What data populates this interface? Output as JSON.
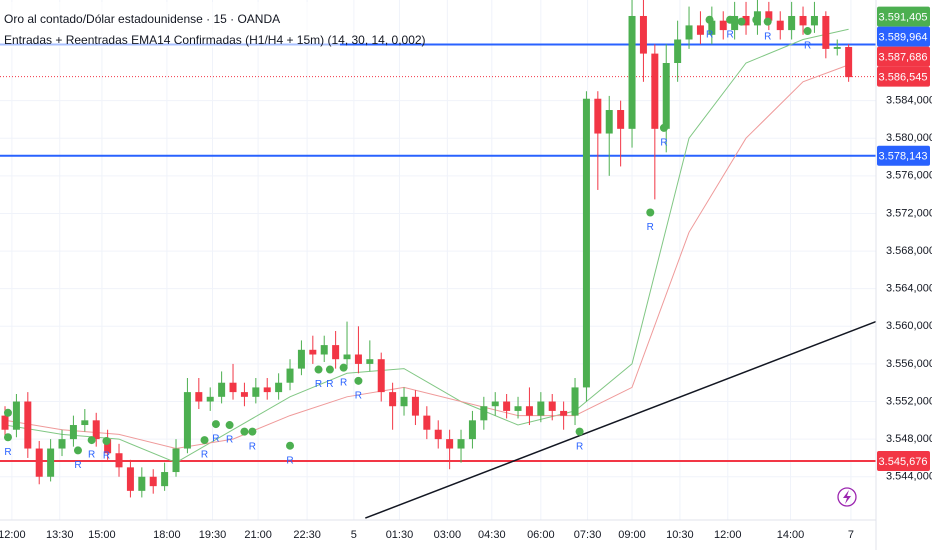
{
  "chart_data": {
    "type": "candlestick",
    "title": "Oro al contado/Dólar estadounidense · 15 · OANDA",
    "subtitle": "Entradas + Reentradas EMA14 Confirmadas (H1/H4 + 15m) (14, 30, 14, 0,002)",
    "up_color": "#4caf50",
    "down_color": "#f23645",
    "xlim": [
      -0.44,
      76.4
    ],
    "ylim": [
      3.5394,
      3.5947
    ],
    "yticks": [
      {
        "value": 3.584,
        "label": "3.584,000"
      },
      {
        "value": 3.58,
        "label": "3.580,000"
      },
      {
        "value": 3.576,
        "label": "3.576,000"
      },
      {
        "value": 3.572,
        "label": "3.572,000"
      },
      {
        "value": 3.568,
        "label": "3.568,000"
      },
      {
        "value": 3.564,
        "label": "3.564,000"
      },
      {
        "value": 3.56,
        "label": "3.560,000"
      },
      {
        "value": 3.556,
        "label": "3.556,000"
      },
      {
        "value": 3.552,
        "label": "3.552,000"
      },
      {
        "value": 3.548,
        "label": "3.548,000"
      },
      {
        "value": 3.544,
        "label": "3.544,000"
      }
    ],
    "xticks": [
      {
        "value": 0.6,
        "label": "12:00"
      },
      {
        "value": 4.8,
        "label": "13:30"
      },
      {
        "value": 8.5,
        "label": "15:00"
      },
      {
        "value": 14.2,
        "label": "18:00"
      },
      {
        "value": 18.2,
        "label": "19:30"
      },
      {
        "value": 22.2,
        "label": "21:00"
      },
      {
        "value": 26.5,
        "label": "22:30"
      },
      {
        "value": 30.6,
        "label": "5"
      },
      {
        "value": 34.6,
        "label": "01:30"
      },
      {
        "value": 38.8,
        "label": "03:00"
      },
      {
        "value": 42.7,
        "label": "04:30"
      },
      {
        "value": 47,
        "label": "06:00"
      },
      {
        "value": 51.1,
        "label": "07:30"
      },
      {
        "value": 55,
        "label": "09:00"
      },
      {
        "value": 59.2,
        "label": "10:30"
      },
      {
        "value": 63.4,
        "label": "12:00"
      },
      {
        "value": 68.9,
        "label": "14:00"
      },
      {
        "value": 74.2,
        "label": "7"
      }
    ],
    "grid": true,
    "open": [
      3.5505,
      3.549,
      3.552,
      3.547,
      3.544,
      3.547,
      3.548,
      3.5495,
      3.55,
      3.548,
      3.5465,
      3.545,
      3.5425,
      3.544,
      3.543,
      3.5445,
      3.547,
      3.553,
      3.552,
      3.5525,
      3.554,
      3.553,
      3.5525,
      3.5535,
      3.553,
      3.554,
      3.5555,
      3.5575,
      3.557,
      3.558,
      3.5565,
      3.557,
      3.556,
      3.5565,
      3.553,
      3.5515,
      3.5525,
      3.5505,
      3.549,
      3.548,
      3.547,
      3.548,
      3.55,
      3.5515,
      3.552,
      3.551,
      3.5515,
      3.5505,
      3.552,
      3.551,
      3.5505,
      3.5535,
      3.5842,
      3.5805,
      3.583,
      3.581,
      3.593,
      3.589,
      3.581,
      3.588,
      3.5905,
      3.592,
      3.591,
      3.5925,
      3.5915,
      3.593,
      3.592,
      3.5935,
      3.5925,
      3.5915,
      3.593,
      3.592,
      3.593,
      3.5895,
      3.5897
    ],
    "high": [
      3.5515,
      3.5528,
      3.553,
      3.5478,
      3.548,
      3.549,
      3.5505,
      3.5512,
      3.5508,
      3.549,
      3.5475,
      3.5458,
      3.545,
      3.5448,
      3.5455,
      3.548,
      3.5545,
      3.5545,
      3.5535,
      3.5552,
      3.556,
      3.554,
      3.5545,
      3.5545,
      3.555,
      3.5565,
      3.5585,
      3.559,
      3.559,
      3.5595,
      3.5605,
      3.56,
      3.5585,
      3.5572,
      3.554,
      3.5535,
      3.5532,
      3.5515,
      3.55,
      3.549,
      3.549,
      3.551,
      3.5525,
      3.553,
      3.5528,
      3.5525,
      3.5535,
      3.553,
      3.5528,
      3.552,
      3.5545,
      3.585,
      3.585,
      3.5845,
      3.584,
      3.596,
      3.596,
      3.59,
      3.59,
      3.5925,
      3.594,
      3.5935,
      3.594,
      3.5935,
      3.5945,
      3.5945,
      3.595,
      3.5945,
      3.5935,
      3.5945,
      3.594,
      3.5945,
      3.5935,
      3.5905,
      3.59
    ],
    "low": [
      3.548,
      3.5482,
      3.546,
      3.5432,
      3.5435,
      3.5462,
      3.5472,
      3.5488,
      3.5472,
      3.5458,
      3.544,
      3.5418,
      3.5418,
      3.5422,
      3.5425,
      3.544,
      3.5465,
      3.5512,
      3.551,
      3.5518,
      3.5522,
      3.5515,
      3.5518,
      3.5522,
      3.5522,
      3.5532,
      3.5548,
      3.556,
      3.5562,
      3.5555,
      3.5555,
      3.555,
      3.5552,
      3.552,
      3.549,
      3.5505,
      3.5495,
      3.548,
      3.547,
      3.5448,
      3.5455,
      3.547,
      3.549,
      3.5505,
      3.5502,
      3.5502,
      3.5495,
      3.5498,
      3.55,
      3.549,
      3.5495,
      3.552,
      3.5745,
      3.576,
      3.577,
      3.579,
      3.586,
      3.5735,
      3.5785,
      3.586,
      3.5895,
      3.59,
      3.59,
      3.5905,
      3.5905,
      3.591,
      3.591,
      3.5915,
      3.5905,
      3.5905,
      3.591,
      3.5912,
      3.5885,
      3.5888,
      3.586
    ],
    "close": [
      3.549,
      3.552,
      3.547,
      3.544,
      3.547,
      3.548,
      3.5495,
      3.55,
      3.548,
      3.5465,
      3.545,
      3.5425,
      3.544,
      3.543,
      3.5445,
      3.547,
      3.553,
      3.552,
      3.5525,
      3.554,
      3.553,
      3.5525,
      3.5535,
      3.553,
      3.554,
      3.5555,
      3.5575,
      3.557,
      3.558,
      3.5565,
      3.557,
      3.556,
      3.5565,
      3.553,
      3.5515,
      3.5525,
      3.5505,
      3.549,
      3.548,
      3.547,
      3.548,
      3.55,
      3.5515,
      3.552,
      3.551,
      3.5515,
      3.5505,
      3.552,
      3.551,
      3.5505,
      3.5535,
      3.5842,
      3.5805,
      3.583,
      3.581,
      3.593,
      3.589,
      3.581,
      3.588,
      3.5905,
      3.592,
      3.591,
      3.5925,
      3.5915,
      3.593,
      3.592,
      3.5935,
      3.5925,
      3.5915,
      3.593,
      3.592,
      3.593,
      3.5895,
      3.5897,
      3.5865
    ],
    "lines": [
      {
        "color": "#81c784",
        "x": [
          0,
          5,
          10,
          15,
          20,
          25,
          30,
          35,
          40,
          45,
          50,
          55,
          60,
          65,
          70,
          74
        ],
        "values": [
          3.5495,
          3.5485,
          3.548,
          3.5455,
          3.549,
          3.5525,
          3.555,
          3.5555,
          3.552,
          3.5495,
          3.551,
          3.556,
          3.58,
          3.588,
          3.5905,
          3.5916
        ]
      },
      {
        "color": "#ef9a9a",
        "x": [
          0,
          5,
          10,
          15,
          20,
          25,
          30,
          35,
          40,
          45,
          50,
          55,
          60,
          65,
          70,
          74
        ],
        "values": [
          3.55,
          3.549,
          3.5485,
          3.547,
          3.548,
          3.5505,
          3.5525,
          3.5535,
          3.552,
          3.5505,
          3.5505,
          3.5535,
          3.57,
          3.58,
          3.586,
          3.5878
        ]
      },
      {
        "color": "#131722",
        "x": [
          31.6,
          76.4
        ],
        "values": [
          3.5396,
          3.5605
        ]
      }
    ],
    "signal_color": "#4caf50",
    "signals": [
      {
        "x": 0.26,
        "value": 3.5508
      },
      {
        "x": 0.26,
        "value": 3.5482,
        "label": "R"
      },
      {
        "x": 6.4,
        "value": 3.5468,
        "label": "R"
      },
      {
        "x": 7.6,
        "value": 3.5479,
        "label": "R"
      },
      {
        "x": 8.9,
        "value": 3.5478,
        "label": "R"
      },
      {
        "x": 17.5,
        "value": 3.5479,
        "label": "R"
      },
      {
        "x": 18.5,
        "value": 3.5496,
        "label": "R"
      },
      {
        "x": 19.7,
        "value": 3.5495,
        "label": "R"
      },
      {
        "x": 21.0,
        "value": 3.5488
      },
      {
        "x": 21.7,
        "value": 3.5488,
        "label": "R"
      },
      {
        "x": 25.0,
        "value": 3.5473,
        "label": "R"
      },
      {
        "x": 27.5,
        "value": 3.5554,
        "label": "R"
      },
      {
        "x": 28.5,
        "value": 3.5554,
        "label": "R"
      },
      {
        "x": 29.7,
        "value": 3.5556,
        "label": "R"
      },
      {
        "x": 31.0,
        "value": 3.5542,
        "label": "R"
      },
      {
        "x": 50.4,
        "value": 3.5488,
        "label": "R"
      },
      {
        "x": 56.6,
        "value": 3.5721,
        "label": "R"
      },
      {
        "x": 57.8,
        "value": 3.5811,
        "label": "R"
      },
      {
        "x": 61.8,
        "value": 3.5926,
        "label": "R"
      },
      {
        "x": 63.6,
        "value": 3.5926,
        "label": "R"
      },
      {
        "x": 64.6,
        "value": 3.5924
      },
      {
        "x": 65.9,
        "value": 3.5926
      },
      {
        "x": 66.9,
        "value": 3.5924,
        "label": "R"
      },
      {
        "x": 70.4,
        "value": 3.5914,
        "label": "R"
      }
    ],
    "hlines": [
      {
        "value": 3.589964,
        "color": "#2962ff",
        "style": "solid"
      },
      {
        "value": 3.578143,
        "color": "#2962ff",
        "style": "solid"
      },
      {
        "value": 3.545676,
        "color": "#f23645",
        "style": "solid"
      },
      {
        "value": 3.586545,
        "color": "#f23645",
        "style": "dotted"
      }
    ],
    "price_labels": [
      {
        "value": 3.591405,
        "label": "3.591,405",
        "color": "#4caf50"
      },
      {
        "value": 3.589964,
        "label": "3.589,964",
        "color": "#2962ff"
      },
      {
        "value": 3.587686,
        "label": "3.587,686",
        "color": "#f23645"
      },
      {
        "value": 3.586545,
        "label": "3.586,545",
        "color": "#f23645"
      },
      {
        "value": 3.578143,
        "label": "3.578,143",
        "color": "#2962ff"
      },
      {
        "value": 3.545676,
        "label": "3.545,676",
        "color": "#f23645"
      }
    ]
  }
}
